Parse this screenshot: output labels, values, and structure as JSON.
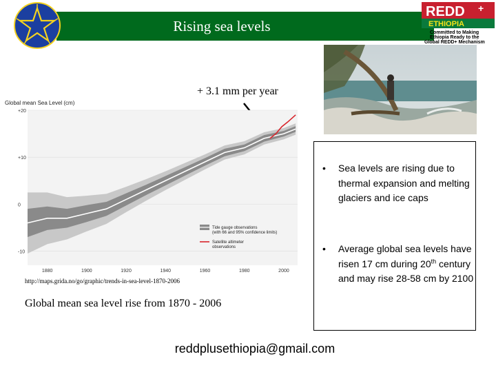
{
  "slide": {
    "title": "Rising sea levels",
    "annotation": "+ 3.1 mm per year",
    "source_url": "http://maps.grida.no/go/graphic/trends-in-sea-level-1870-2006",
    "caption": "Global mean sea level rise from 1870 - 2006",
    "email": "reddplusethiopia@gmail.com"
  },
  "logo": {
    "brand": "REDD",
    "plus": "+",
    "country": "ETHIOPIA",
    "tagline": [
      "Committed to Making",
      "Ethiopia Ready to the",
      "Global REDD+ Mechanism"
    ]
  },
  "bullets": [
    {
      "mark": "•",
      "text": "Sea levels are rising due to thermal expansion and melting glaciers and ice caps"
    },
    {
      "mark": "•",
      "pre": "Average global sea levels have risen 17 cm during 20",
      "sup": "th",
      "post": " century and may rise 28-58 cm by 2100"
    }
  ],
  "colors": {
    "title_bar": "#006a1d",
    "tide_band_outer": "#c8c8c8",
    "tide_band_inner": "#8a8a8a",
    "satellite": "#d8232a"
  },
  "chart_data": {
    "type": "line",
    "title": "Global mean Sea Level (cm)",
    "xlabel": "",
    "ylabel": "",
    "xlim": [
      1870,
      2007
    ],
    "ylim": [
      -13,
      20
    ],
    "xticks": [
      1880,
      1900,
      1920,
      1940,
      1960,
      1980,
      2000
    ],
    "yticks": [
      {
        "value": 20,
        "label": "+20"
      },
      {
        "value": 10,
        "label": "+10"
      },
      {
        "value": 0,
        "label": "0"
      },
      {
        "value": -10,
        "label": "-10"
      }
    ],
    "legend": [
      {
        "name": "Tide gauge observations",
        "detail": "(with 66 and 95% confidence limits)"
      },
      {
        "name": "Satellite altimeter",
        "detail": "observations"
      }
    ],
    "legend_position": "bottom-right",
    "series": [
      {
        "name": "Tide gauge observations",
        "x": [
          1870,
          1880,
          1890,
          1900,
          1910,
          1920,
          1930,
          1940,
          1950,
          1960,
          1970,
          1980,
          1990,
          2000,
          2006
        ],
        "y": [
          -4,
          -3,
          -3,
          -2,
          -1,
          1,
          3,
          5,
          7,
          9,
          11,
          12,
          14,
          15,
          16
        ],
        "ci66": [
          3,
          2.5,
          2,
          1.8,
          1.5,
          1.3,
          1.1,
          1,
          0.9,
          0.8,
          0.8,
          0.7,
          0.7,
          0.6,
          0.6
        ],
        "ci95": [
          6.5,
          5.5,
          4.5,
          3.8,
          3.2,
          2.7,
          2.3,
          2,
          1.8,
          1.6,
          1.5,
          1.4,
          1.3,
          1.2,
          1.2
        ]
      },
      {
        "name": "Satellite altimeter observations",
        "x": [
          1993,
          1996,
          1999,
          2002,
          2006
        ],
        "y": [
          14,
          15,
          16.5,
          17.5,
          19
        ]
      }
    ]
  }
}
